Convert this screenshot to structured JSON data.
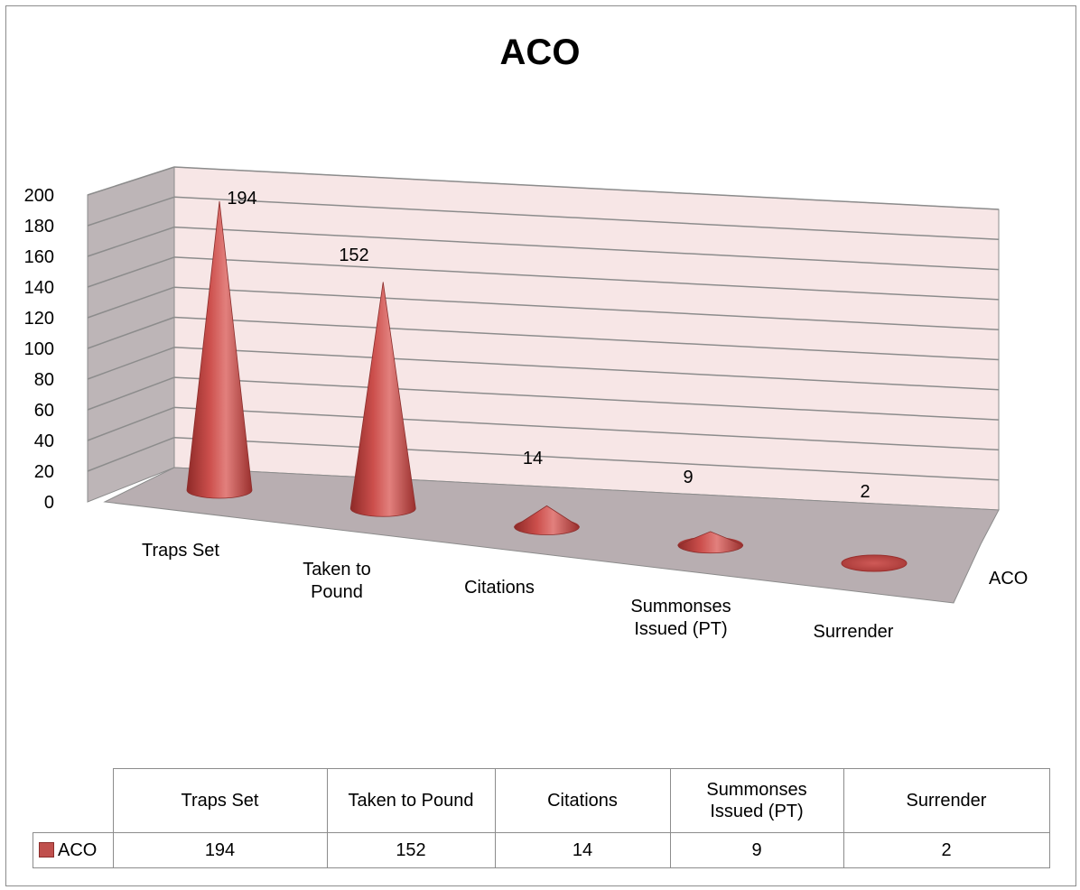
{
  "chart_data": {
    "type": "bar",
    "title": "ACO",
    "categories": [
      "Traps Set",
      "Taken to Pound",
      "Citations",
      "Summonses Issued (PT)",
      "Surrender"
    ],
    "category_label_lines": [
      [
        "Traps Set"
      ],
      [
        "Taken to",
        "Pound"
      ],
      [
        "Citations"
      ],
      [
        "Summonses",
        "Issued (PT)"
      ],
      [
        "Surrender"
      ]
    ],
    "series": [
      {
        "name": "ACO",
        "values": [
          194,
          152,
          14,
          9,
          2
        ]
      }
    ],
    "series_axis_label": "ACO",
    "ylim": [
      0,
      200
    ],
    "y_ticks": [
      "0",
      "20",
      "40",
      "60",
      "80",
      "100",
      "120",
      "140",
      "160",
      "180",
      "200"
    ],
    "data_labels": [
      "194",
      "152",
      "14",
      "9",
      "2"
    ],
    "grid": true,
    "legend": "data-table-below",
    "colors": {
      "bar": "#c0504d",
      "wall": "#f7e6e6",
      "floor": "#b8aeb1",
      "side_wall": "#bdb5b7"
    }
  },
  "data_table": {
    "headers": [
      "Traps Set",
      "Taken to Pound",
      "Citations",
      "Summonses Issued (PT)",
      "Surrender"
    ],
    "header_lines": [
      [
        "Traps Set"
      ],
      [
        "Taken to Pound"
      ],
      [
        "Citations"
      ],
      [
        "Summonses",
        "Issued (PT)"
      ],
      [
        "Surrender"
      ]
    ],
    "series_label": "ACO",
    "values": [
      "194",
      "152",
      "14",
      "9",
      "2"
    ]
  }
}
